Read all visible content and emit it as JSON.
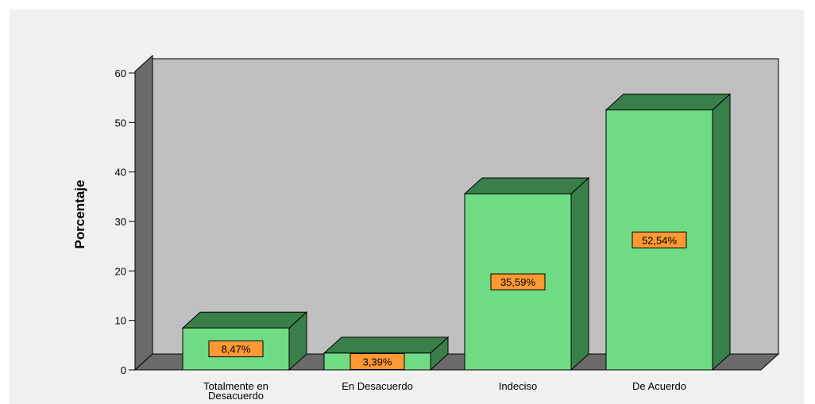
{
  "chart_data": {
    "type": "bar",
    "categories": [
      [
        "Totalmente en",
        "Desacuerdo"
      ],
      [
        "En Desacuerdo"
      ],
      [
        "Indeciso"
      ],
      [
        "De Acuerdo"
      ]
    ],
    "values": [
      8.47,
      3.39,
      35.59,
      52.54
    ],
    "data_labels": [
      "8,47%",
      "3,39%",
      "35,59%",
      "52,54%"
    ],
    "ylabel": "Porcentaje",
    "ylim": [
      0,
      60
    ],
    "yticks": [
      0,
      10,
      20,
      30,
      40,
      50,
      60
    ],
    "grid": false,
    "three_d": true,
    "colors": {
      "bar_front": "#6fdc85",
      "bar_top": "#3a7e4a",
      "bar_side": "#3a7e4a",
      "label_bg": "#ff9933",
      "back_wall": "#c0c0c0",
      "side_wall": "#6a6a6a",
      "floor": "#6a6a6a"
    }
  }
}
